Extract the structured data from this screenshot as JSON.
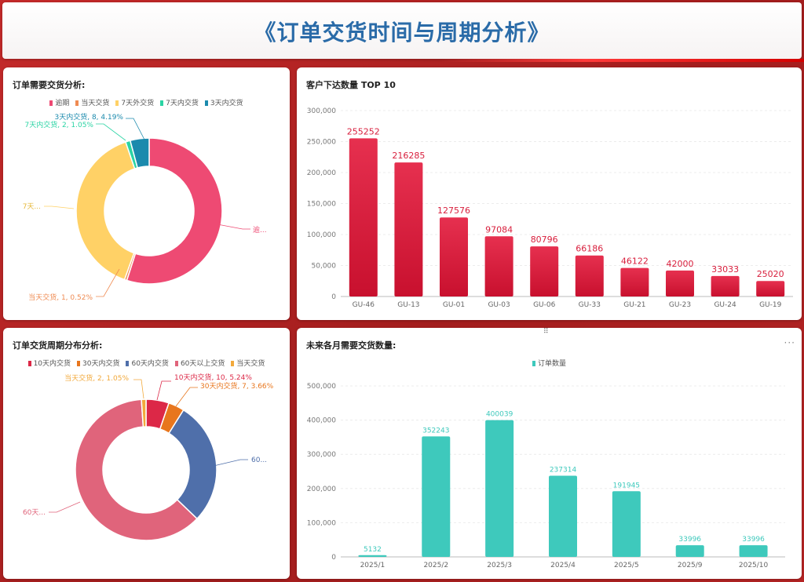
{
  "header": {
    "title": "《订单交货时间与周期分析》"
  },
  "panels": {
    "delivery_need": {
      "title": "订单需要交货分析:",
      "legend": [
        {
          "name": "逾期",
          "color": "#ee4a73"
        },
        {
          "name": "当天交货",
          "color": "#ef8b52"
        },
        {
          "name": "7天外交货",
          "color": "#ffd166"
        },
        {
          "name": "7天内交货",
          "color": "#2bd4a4"
        },
        {
          "name": "3天内交货",
          "color": "#1b8aad"
        }
      ],
      "labels": {
        "s3": "3天内交货, 8, 4.19%",
        "s7in": "7天内交货, 2, 1.05%",
        "s7out": "7天...",
        "overdue": "逾...",
        "today": "当天交货, 1, 0.52%"
      }
    },
    "top_customers": {
      "title": "客户下达数量 TOP 10"
    },
    "cycle_dist": {
      "title": "订单交货周期分布分析:",
      "legend": [
        {
          "name": "10天内交货",
          "color": "#dc2847"
        },
        {
          "name": "30天内交货",
          "color": "#e8761d"
        },
        {
          "name": "60天内交货",
          "color": "#4f6faa"
        },
        {
          "name": "60天以上交货",
          "color": "#e0647b"
        },
        {
          "name": "当天交货",
          "color": "#f2a93b"
        }
      ],
      "labels": {
        "today": "当天交货, 2, 1.05%",
        "d10": "10天内交货, 10, 5.24%",
        "d30": "30天内交货, 7, 3.66%",
        "d60": "60...",
        "d60plus": "60天..."
      }
    },
    "monthly": {
      "title": "未来各月需要交货数量:",
      "legend": "订单数量",
      "more": "···"
    }
  },
  "chart_data": [
    {
      "type": "pie",
      "title": "订单需要交货分析:",
      "categories": [
        "逾期",
        "当天交货",
        "7天外交货",
        "7天内交货",
        "3天内交货"
      ],
      "values": [
        105,
        1,
        75,
        2,
        8
      ],
      "colors": [
        "#ee4a73",
        "#ef8b52",
        "#ffd166",
        "#2bd4a4",
        "#1b8aad"
      ],
      "legend_position": "top"
    },
    {
      "type": "bar",
      "title": "客户下达数量 TOP 10",
      "categories": [
        "GU-46",
        "GU-13",
        "GU-01",
        "GU-03",
        "GU-06",
        "GU-33",
        "GU-21",
        "GU-23",
        "GU-24",
        "GU-19"
      ],
      "values": [
        255252,
        216285,
        127576,
        97084,
        80796,
        66186,
        46122,
        42000,
        33033,
        25020
      ],
      "ylim": [
        0,
        300000
      ],
      "yticks": [
        "0",
        "50,000",
        "100,000",
        "150,000",
        "200,000",
        "250,000",
        "300,000"
      ],
      "color": "#d81e3c",
      "grid": true
    },
    {
      "type": "pie",
      "title": "订单交货周期分布分析:",
      "categories": [
        "10天内交货",
        "30天内交货",
        "60天内交货",
        "60天以上交货",
        "当天交货"
      ],
      "values": [
        10,
        7,
        54,
        118,
        2
      ],
      "colors": [
        "#dc2847",
        "#e8761d",
        "#4f6faa",
        "#e0647b",
        "#f2a93b"
      ],
      "legend_position": "top"
    },
    {
      "type": "bar",
      "title": "未来各月需要交货数量:",
      "categories": [
        "2025/1",
        "2025/2",
        "2025/3",
        "2025/4",
        "2025/5",
        "2025/9",
        "2025/10"
      ],
      "series": [
        {
          "name": "订单数量",
          "values": [
            5132,
            352243,
            400039,
            237314,
            191945,
            33996,
            33996
          ]
        }
      ],
      "ylim": [
        0,
        500000
      ],
      "yticks": [
        "0",
        "100,000",
        "200,000",
        "300,000",
        "400,000",
        "500,000"
      ],
      "color": "#3ec9bc",
      "grid": true
    }
  ]
}
